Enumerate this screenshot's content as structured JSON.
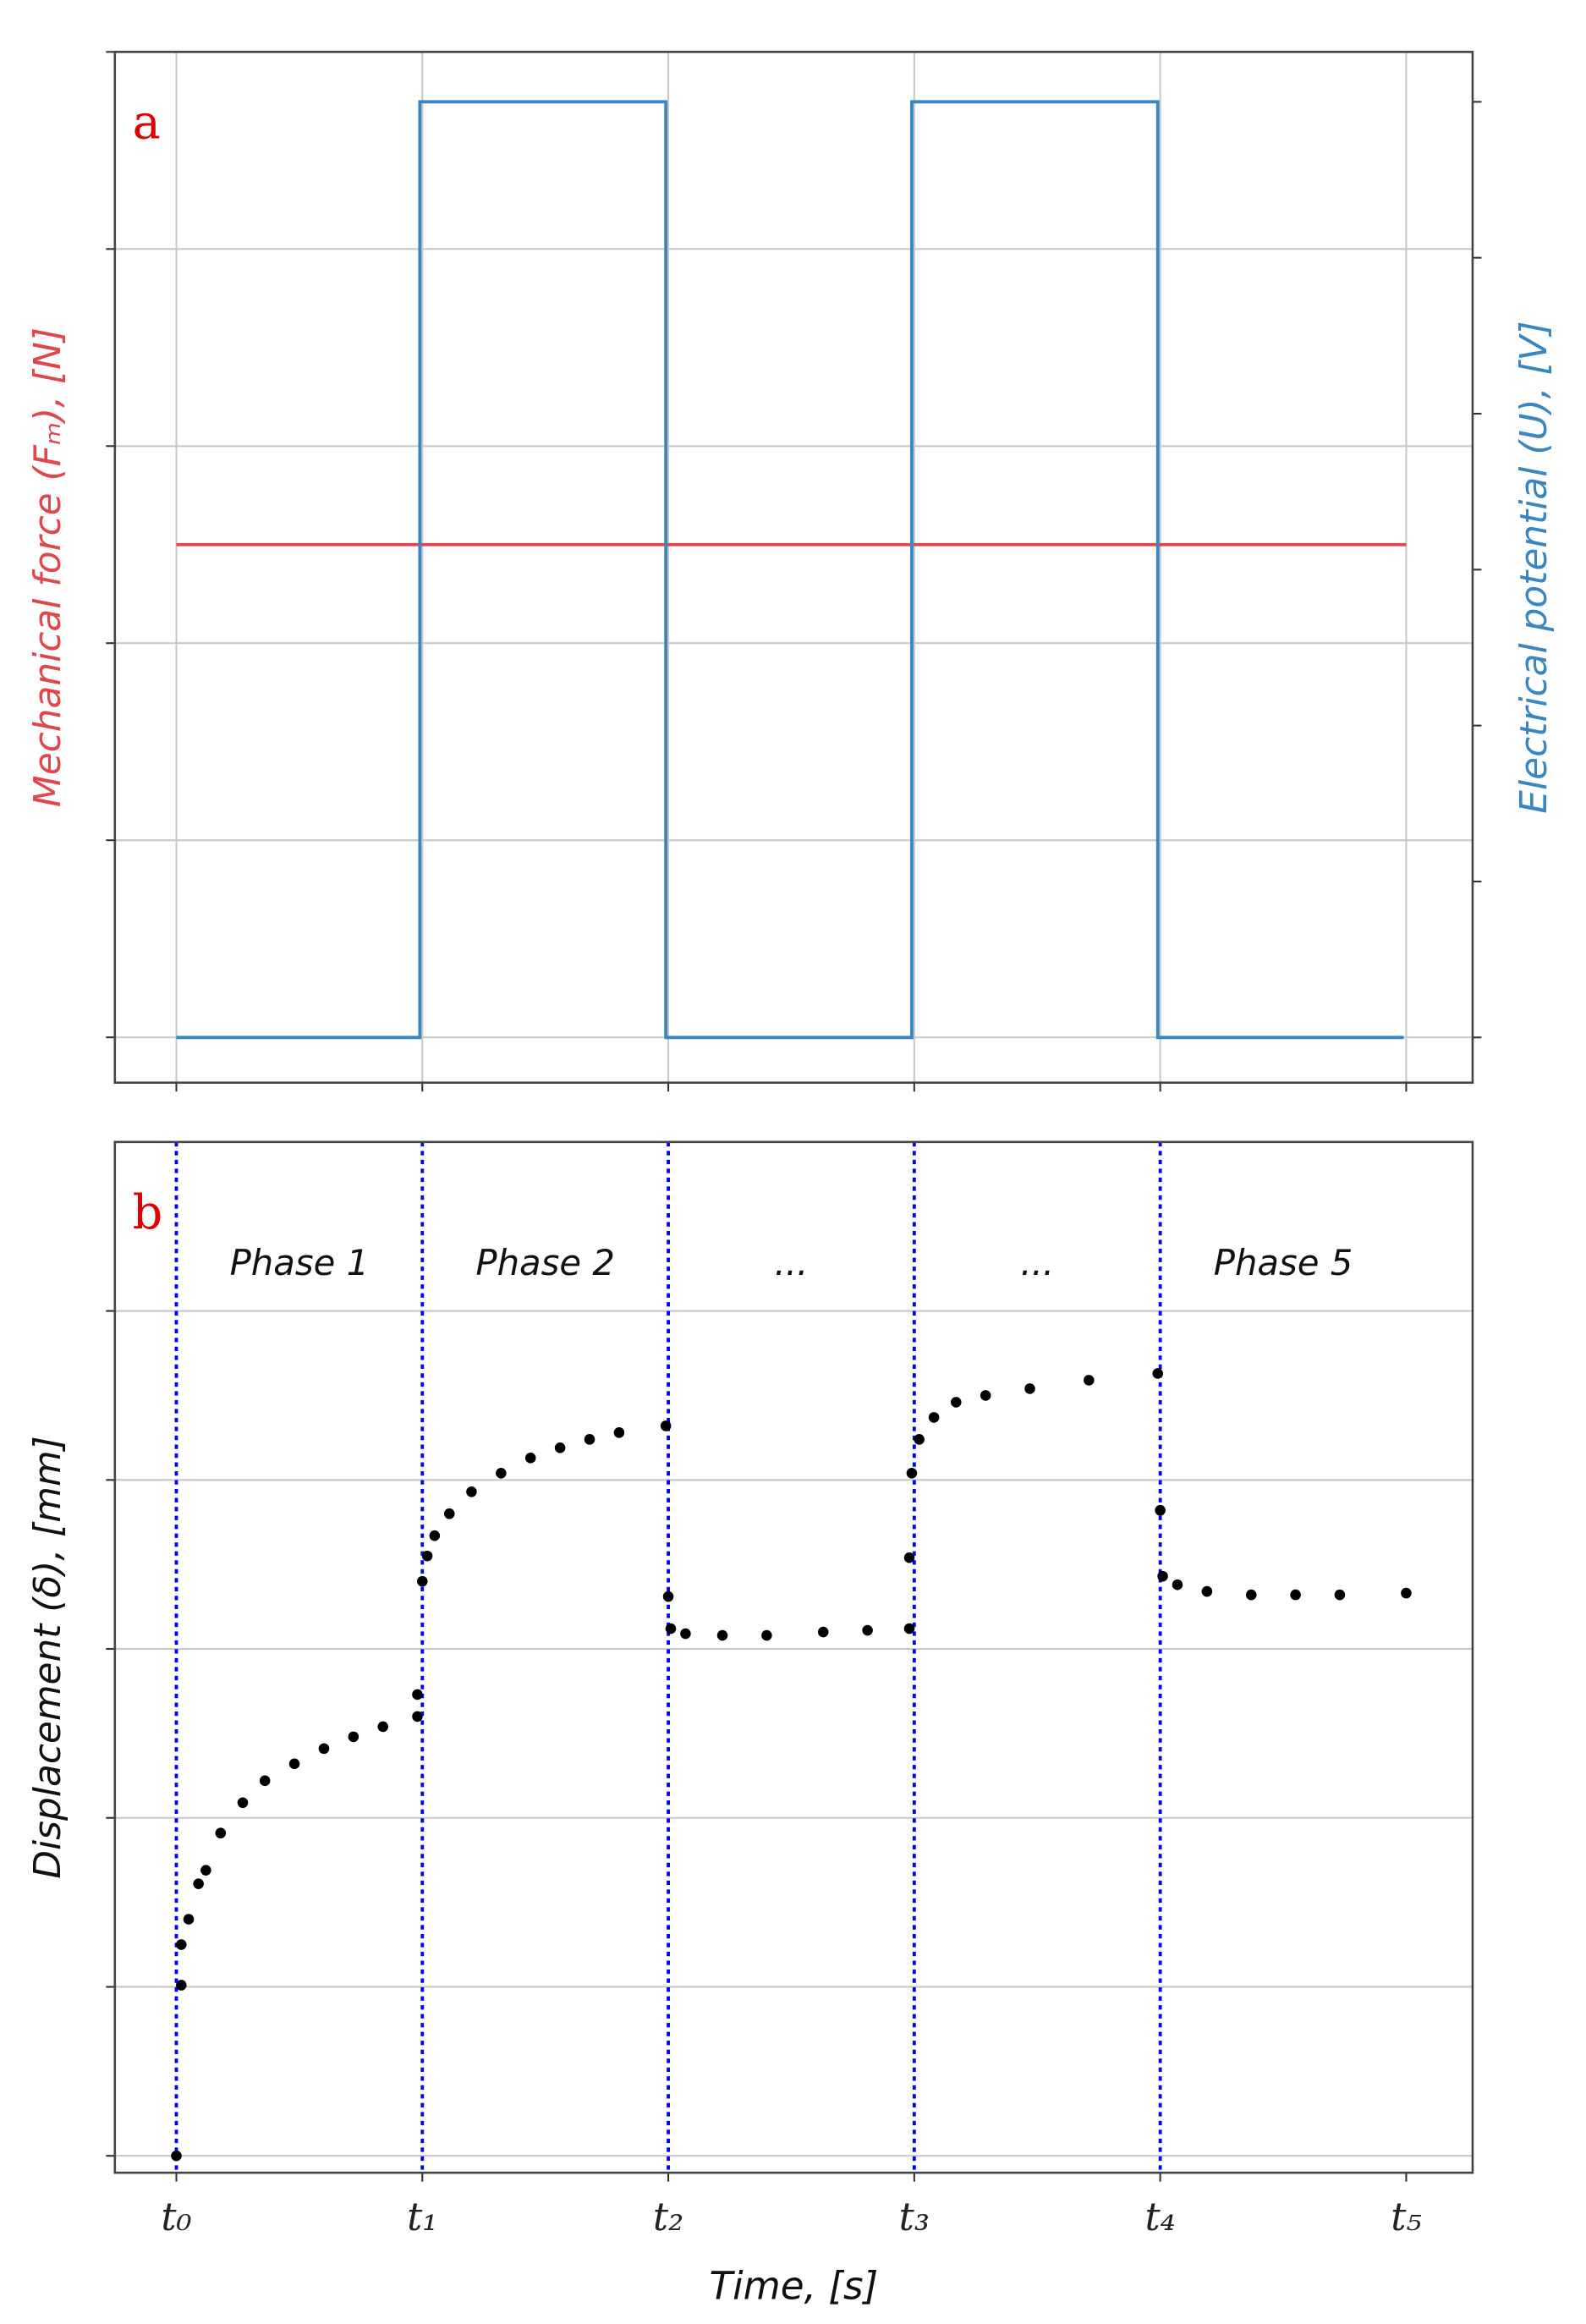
{
  "chart_data": [
    {
      "type": "line",
      "panel_label": "a",
      "ylabel": "Mechanical force (Fₘ), [N]",
      "y2label": "Electrical potential (U), [V]",
      "xlim": [
        -0.25,
        5.27
      ],
      "xticks": [
        0,
        1,
        2,
        3,
        4,
        5
      ],
      "ylim": [
        -0.23,
        5
      ],
      "yticks": [
        0,
        1,
        2,
        3,
        4,
        5
      ],
      "y2lim": [
        -0.29,
        6.32
      ],
      "y2ticks": [
        0,
        1,
        2,
        3,
        4,
        5,
        6
      ],
      "grid": true,
      "series": [
        {
          "color": "#e0474c",
          "x": [
            0,
            5
          ],
          "values": [
            2.5,
            2.5
          ]
        },
        {
          "color": "#3a86c0",
          "axis": "y2",
          "x": [
            0,
            0.99,
            0.99,
            1.99,
            1.99,
            2.99,
            2.99,
            3.99,
            3.99,
            4.99
          ],
          "values": [
            0,
            0,
            6,
            6,
            0,
            0,
            6,
            6,
            0,
            0
          ]
        }
      ]
    },
    {
      "type": "scatter",
      "panel_label": "b",
      "xlabel": "Time, [s]",
      "ylabel": "Displacement (δ), [mm]",
      "xlim": [
        -0.25,
        5.27
      ],
      "xticks": [
        {
          "value": 0,
          "label": "t₀"
        },
        {
          "value": 1,
          "label": "t₁"
        },
        {
          "value": 2,
          "label": "t₂"
        },
        {
          "value": 3,
          "label": "t₃"
        },
        {
          "value": 4,
          "label": "t₄"
        },
        {
          "value": 5,
          "label": "t₅"
        }
      ],
      "ylim": [
        -0.1,
        6
      ],
      "yticks": [
        0,
        1,
        2,
        3,
        4,
        5
      ],
      "grid": true,
      "vlines": [
        0,
        1,
        2,
        3,
        4
      ],
      "vline_color": "#0000ff",
      "phases": [
        "Phase 1",
        "Phase 2",
        "...",
        "...",
        "Phase 5"
      ],
      "color": "#000000",
      "x": [
        0,
        0.02,
        0.02,
        0.05,
        0.09,
        0.12,
        0.18,
        0.27,
        0.36,
        0.48,
        0.6,
        0.72,
        0.84,
        0.98,
        0.98,
        1.0,
        1.02,
        1.05,
        1.11,
        1.2,
        1.32,
        1.44,
        1.56,
        1.68,
        1.8,
        1.99,
        2.0,
        2.01,
        2.07,
        2.22,
        2.4,
        2.63,
        2.81,
        2.98,
        2.98,
        2.99,
        3.02,
        3.08,
        3.17,
        3.29,
        3.47,
        3.71,
        3.99,
        4.0,
        4.01,
        4.07,
        4.19,
        4.37,
        4.55,
        4.73,
        5.0
      ],
      "values": [
        0,
        1.01,
        1.25,
        1.4,
        1.61,
        1.69,
        1.91,
        2.09,
        2.22,
        2.32,
        2.41,
        2.48,
        2.54,
        2.6,
        2.73,
        3.4,
        3.55,
        3.67,
        3.8,
        3.93,
        4.04,
        4.13,
        4.19,
        4.24,
        4.28,
        4.32,
        3.31,
        3.12,
        3.09,
        3.08,
        3.08,
        3.1,
        3.11,
        3.12,
        3.54,
        4.04,
        4.24,
        4.37,
        4.46,
        4.5,
        4.54,
        4.59,
        4.63,
        3.82,
        3.43,
        3.38,
        3.34,
        3.32,
        3.32,
        3.32,
        3.33
      ]
    }
  ]
}
